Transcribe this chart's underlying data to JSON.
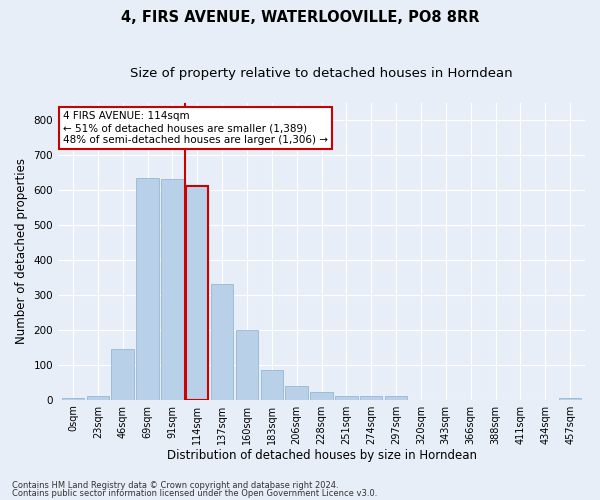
{
  "title": "4, FIRS AVENUE, WATERLOOVILLE, PO8 8RR",
  "subtitle": "Size of property relative to detached houses in Horndean",
  "xlabel": "Distribution of detached houses by size in Horndean",
  "ylabel": "Number of detached properties",
  "bar_labels": [
    "0sqm",
    "23sqm",
    "46sqm",
    "69sqm",
    "91sqm",
    "114sqm",
    "137sqm",
    "160sqm",
    "183sqm",
    "206sqm",
    "228sqm",
    "251sqm",
    "274sqm",
    "297sqm",
    "320sqm",
    "343sqm",
    "366sqm",
    "388sqm",
    "411sqm",
    "434sqm",
    "457sqm"
  ],
  "bar_values": [
    5,
    10,
    145,
    635,
    630,
    610,
    330,
    200,
    85,
    40,
    22,
    10,
    10,
    10,
    0,
    0,
    0,
    0,
    0,
    0,
    5
  ],
  "bar_color": "#b8d0e8",
  "bar_edgecolor": "#8ab0d0",
  "highlight_index": 5,
  "highlight_color": "#cc0000",
  "ylim": [
    0,
    850
  ],
  "yticks": [
    0,
    100,
    200,
    300,
    400,
    500,
    600,
    700,
    800
  ],
  "annotation_text": "4 FIRS AVENUE: 114sqm\n← 51% of detached houses are smaller (1,389)\n48% of semi-detached houses are larger (1,306) →",
  "annotation_box_color": "#ffffff",
  "annotation_box_edgecolor": "#cc0000",
  "footnote1": "Contains HM Land Registry data © Crown copyright and database right 2024.",
  "footnote2": "Contains public sector information licensed under the Open Government Licence v3.0.",
  "bg_color": "#e8eef8",
  "plot_bg_color": "#e8eef8",
  "grid_color": "#ffffff",
  "title_fontsize": 10.5,
  "subtitle_fontsize": 9.5,
  "tick_fontsize": 7,
  "ylabel_fontsize": 8.5,
  "xlabel_fontsize": 8.5,
  "footnote_fontsize": 6,
  "annotation_fontsize": 7.5
}
